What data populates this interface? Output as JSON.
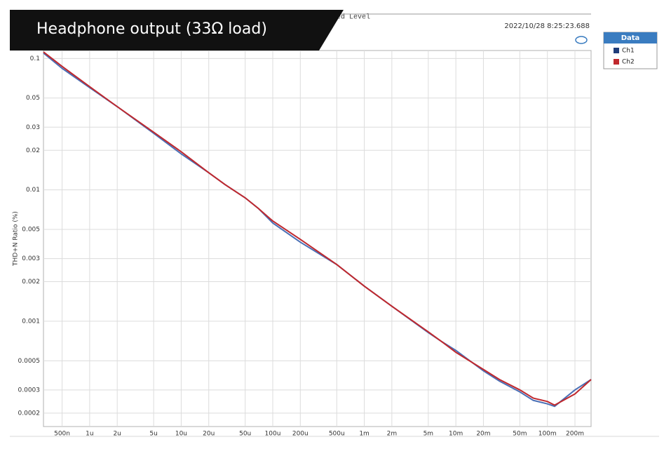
{
  "banner": "Headphone output (33Ω load)",
  "chart_data": {
    "type": "line",
    "title": "ed Level",
    "timestamp": "2022/10/28 8:25:23.688",
    "y_label": "THD+N Ratio (%)",
    "legend_title": "Data",
    "log_x": true,
    "log_y": true,
    "grid": true,
    "xlim": [
      3.13e-07,
      0.3
    ],
    "ylim": [
      0.000158,
      0.115
    ],
    "xticks": [
      {
        "value": 5e-07,
        "label": "500n"
      },
      {
        "value": 1e-06,
        "label": "1u"
      },
      {
        "value": 2e-06,
        "label": "2u"
      },
      {
        "value": 5e-06,
        "label": "5u"
      },
      {
        "value": 1e-05,
        "label": "10u"
      },
      {
        "value": 2e-05,
        "label": "20u"
      },
      {
        "value": 5e-05,
        "label": "50u"
      },
      {
        "value": 0.0001,
        "label": "100u"
      },
      {
        "value": 0.0002,
        "label": "200u"
      },
      {
        "value": 0.0005,
        "label": "500u"
      },
      {
        "value": 0.001,
        "label": "1m"
      },
      {
        "value": 0.002,
        "label": "2m"
      },
      {
        "value": 0.005,
        "label": "5m"
      },
      {
        "value": 0.01,
        "label": "10m"
      },
      {
        "value": 0.02,
        "label": "20m"
      },
      {
        "value": 0.05,
        "label": "50m"
      },
      {
        "value": 0.1,
        "label": "100m"
      },
      {
        "value": 0.2,
        "label": "200m"
      }
    ],
    "yticks": [
      0.1,
      0.05,
      0.03,
      0.02,
      0.01,
      0.005,
      0.003,
      0.002,
      0.001,
      0.0005,
      0.0003,
      0.0002
    ],
    "x": [
      3.13e-07,
      5e-07,
      1e-06,
      2e-06,
      5e-06,
      1e-05,
      2e-05,
      3e-05,
      5e-05,
      7e-05,
      0.0001,
      0.0002,
      0.0005,
      0.001,
      0.002,
      0.005,
      0.007,
      0.01,
      0.02,
      0.03,
      0.05,
      0.07,
      0.1,
      0.12,
      0.2,
      0.3
    ],
    "series": [
      {
        "name": "Ch1",
        "color": "#4a6fb5",
        "legend_color": "#1f3d7a",
        "values": [
          0.11,
          0.084,
          0.06,
          0.043,
          0.027,
          0.0188,
          0.0135,
          0.011,
          0.0087,
          0.0072,
          0.0056,
          0.004,
          0.0027,
          0.00185,
          0.0013,
          0.00082,
          0.0007,
          0.0006,
          0.00042,
          0.00035,
          0.00029,
          0.00025,
          0.000235,
          0.000225,
          0.0003,
          0.00036
        ]
      },
      {
        "name": "Ch2",
        "color": "#c0282d",
        "legend_color": "#c0282d",
        "values": [
          0.112,
          0.087,
          0.061,
          0.043,
          0.0275,
          0.0195,
          0.0135,
          0.011,
          0.0087,
          0.0072,
          0.0058,
          0.0042,
          0.0027,
          0.00185,
          0.0013,
          0.00083,
          0.0007,
          0.00058,
          0.00043,
          0.00036,
          0.0003,
          0.00026,
          0.000245,
          0.00023,
          0.00028,
          0.00036
        ]
      }
    ]
  }
}
